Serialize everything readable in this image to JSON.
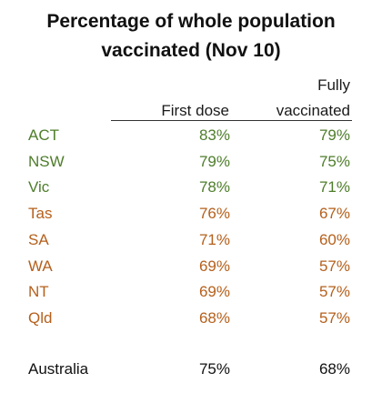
{
  "chart_data": {
    "type": "table",
    "title": [
      "Percentage of whole population",
      "vaccinated (Nov 10)"
    ],
    "columns": {
      "first_dose": "First dose",
      "fully_vaccinated": [
        "Fully",
        "vaccinated"
      ]
    },
    "rows": [
      {
        "state": "ACT",
        "first_dose": "83%",
        "fully_vaccinated": "79%",
        "color": "#4e7d2b"
      },
      {
        "state": "NSW",
        "first_dose": "79%",
        "fully_vaccinated": "75%",
        "color": "#4e7d2b"
      },
      {
        "state": "Vic",
        "first_dose": "78%",
        "fully_vaccinated": "71%",
        "color": "#4e7d2b"
      },
      {
        "state": "Tas",
        "first_dose": "76%",
        "fully_vaccinated": "67%",
        "color": "#b5601c"
      },
      {
        "state": "SA",
        "first_dose": "71%",
        "fully_vaccinated": "60%",
        "color": "#b5601c"
      },
      {
        "state": "WA",
        "first_dose": "69%",
        "fully_vaccinated": "57%",
        "color": "#b5601c"
      },
      {
        "state": "NT",
        "first_dose": "69%",
        "fully_vaccinated": "57%",
        "color": "#b5601c"
      },
      {
        "state": "Qld",
        "first_dose": "68%",
        "fully_vaccinated": "57%",
        "color": "#b5601c"
      }
    ],
    "total": {
      "state": "Australia",
      "first_dose": "75%",
      "fully_vaccinated": "68%",
      "color": "#111111"
    },
    "values": {
      "first_dose": [
        83,
        79,
        78,
        76,
        71,
        69,
        69,
        68
      ],
      "fully_vaccinated": [
        79,
        75,
        71,
        67,
        60,
        57,
        57,
        57
      ],
      "total": {
        "first_dose": 75,
        "fully_vaccinated": 68
      }
    }
  }
}
